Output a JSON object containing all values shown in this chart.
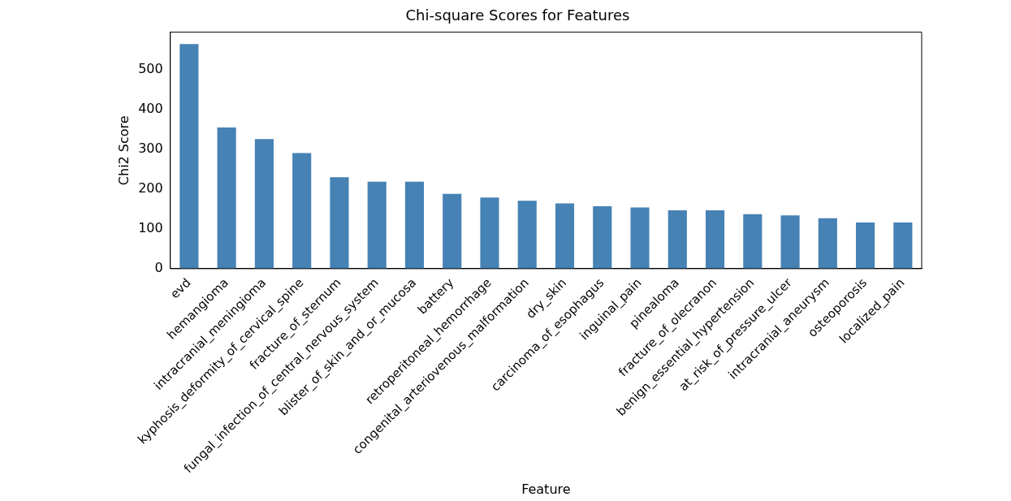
{
  "chart_data": {
    "type": "bar",
    "title": "Chi-square Scores for Features",
    "xlabel": "Feature",
    "ylabel": "Chi2 Score",
    "categories": [
      "evd",
      "hemangioma",
      "intracranial_meningioma",
      "kyphosis_deformity_of_cervical_spine",
      "fracture_of_sternum",
      "fungal_infection_of_central_nervous_system",
      "blister_of_skin_and_or_mucosa",
      "battery",
      "retroperitoneal_hemorrhage",
      "congenital_arteriovenous_malformation",
      "dry_skin",
      "carcinoma_of_esophagus",
      "inguinal_pain",
      "pinealoma",
      "fracture_of_olecranon",
      "benign_essential_hypertension",
      "at_risk_of_pressure_ulcer",
      "intracranial_aneurysm",
      "osteoporosis",
      "localized_pain"
    ],
    "values": [
      565,
      355,
      326,
      291,
      230,
      219,
      219,
      188,
      179,
      171,
      164,
      157,
      154,
      147,
      147,
      137,
      134,
      127,
      116,
      116
    ],
    "color": "#4682b4",
    "ylim": [
      0,
      595
    ],
    "yticks": [
      0,
      100,
      200,
      300,
      400,
      500
    ],
    "grid": false,
    "legend": false
  }
}
